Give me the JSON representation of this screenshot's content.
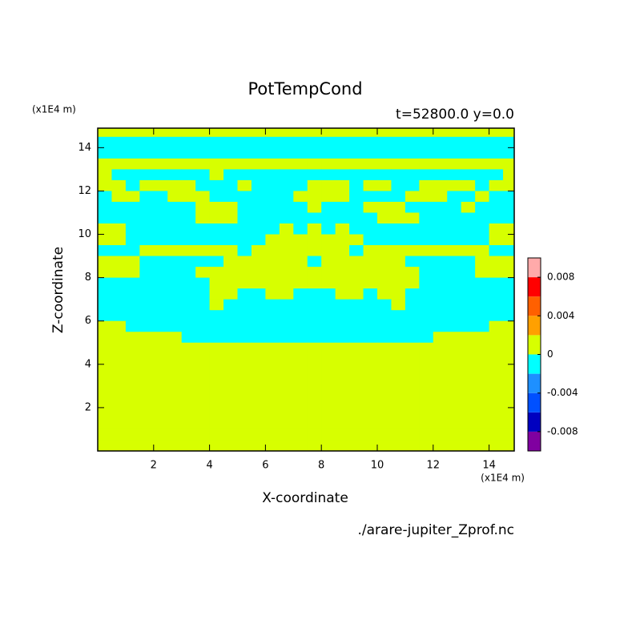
{
  "chart_data": {
    "type": "contour",
    "title": "PotTempCond",
    "subtitle": "t=52800.0 y=0.0",
    "x_label": "X-coordinate",
    "y_label": "Z-coordinate",
    "x_unit": "(x1E4 m)",
    "y_unit": "(x1E4 m)",
    "source": "./arare-jupiter_Zprof.nc",
    "xlim": [
      0,
      14.9
    ],
    "ylim": [
      0,
      14.9
    ],
    "xticks": [
      2,
      4,
      6,
      8,
      10,
      12,
      14
    ],
    "yticks": [
      2,
      4,
      6,
      8,
      10,
      12,
      14
    ],
    "levels": [
      -0.01,
      -0.008,
      -0.006,
      -0.004,
      -0.002,
      0,
      0.002,
      0.004,
      0.006,
      0.008,
      0.01
    ],
    "colors": [
      "#8000a0",
      "#0000c0",
      "#0050ff",
      "#1e90ff",
      "#00ffff",
      "#d7ff00",
      "#ffa000",
      "#ff6000",
      "#ff0000",
      "#ffaaaa"
    ],
    "cbar_ticks": [
      0.008,
      0.004,
      0,
      -0.004,
      -0.008
    ],
    "x": [
      0.25,
      0.75,
      1.25,
      1.75,
      2.25,
      2.75,
      3.25,
      3.75,
      4.25,
      4.75,
      5.25,
      5.75,
      6.25,
      6.75,
      7.25,
      7.75,
      8.25,
      8.75,
      9.25,
      9.75,
      10.25,
      10.75,
      11.25,
      11.75,
      12.25,
      12.75,
      13.25,
      13.75,
      14.25,
      14.75
    ],
    "y": [
      14.75,
      14.25,
      13.75,
      13.25,
      12.75,
      12.25,
      11.75,
      11.25,
      10.75,
      10.25,
      9.75,
      9.25,
      8.75,
      8.25,
      7.75,
      7.25,
      6.75,
      6.25,
      5.75,
      5.25,
      4.75,
      4.25,
      3.75,
      3.25,
      2.75,
      2.25,
      1.75,
      1.25,
      0.75,
      0.25
    ],
    "z": [
      [
        0.001,
        0.001,
        0.001,
        0.001,
        0.001,
        0.001,
        0.001,
        0.001,
        0.001,
        0.001,
        0.001,
        0.001,
        0.001,
        0.001,
        0.001,
        0.001,
        0.001,
        0.001,
        0.001,
        0.001,
        0.001,
        0.001,
        0.001,
        0.001,
        0.001,
        0.001,
        0.001,
        0.001,
        0.001,
        0.001
      ],
      [
        -0.001,
        -0.001,
        -0.001,
        -0.001,
        -0.001,
        -0.001,
        -0.001,
        -0.001,
        -0.001,
        -0.001,
        -0.001,
        -0.001,
        -0.001,
        -0.001,
        -0.001,
        -0.001,
        -0.001,
        -0.001,
        -0.001,
        -0.001,
        -0.001,
        -0.001,
        -0.001,
        -0.001,
        -0.001,
        -0.001,
        -0.001,
        -0.001,
        -0.001,
        -0.001
      ],
      [
        -0.001,
        -0.001,
        -0.001,
        -0.001,
        -0.001,
        -0.001,
        -0.001,
        -0.001,
        -0.001,
        -0.001,
        -0.001,
        -0.001,
        -0.001,
        -0.001,
        -0.001,
        -0.001,
        -0.001,
        -0.001,
        -0.001,
        -0.001,
        -0.001,
        -0.001,
        -0.001,
        -0.001,
        -0.001,
        -0.001,
        -0.001,
        -0.001,
        -0.001,
        -0.001
      ],
      [
        0.001,
        0.001,
        0.001,
        0.001,
        0.001,
        0.001,
        0.001,
        0.001,
        0.001,
        0.001,
        0.001,
        0.001,
        0.001,
        0.001,
        0.001,
        0.001,
        0.001,
        0.001,
        0.001,
        0.001,
        0.001,
        0.001,
        0.001,
        0.001,
        0.001,
        0.001,
        0.001,
        0.001,
        0.001,
        0.001
      ],
      [
        0.001,
        -0.001,
        -0.001,
        -0.001,
        -0.001,
        -0.001,
        -0.001,
        -0.001,
        0.001,
        -0.001,
        -0.001,
        -0.001,
        -0.001,
        -0.001,
        -0.001,
        -0.001,
        -0.001,
        -0.001,
        -0.001,
        -0.001,
        -0.001,
        -0.001,
        -0.001,
        -0.001,
        -0.001,
        -0.001,
        -0.001,
        -0.001,
        -0.001,
        0.001
      ],
      [
        0.001,
        0.001,
        -0.001,
        0.001,
        0.001,
        0.001,
        0.001,
        -0.001,
        -0.001,
        -0.001,
        0.001,
        -0.001,
        -0.001,
        -0.001,
        -0.001,
        0.001,
        0.001,
        0.001,
        -0.001,
        0.001,
        0.001,
        -0.001,
        -0.001,
        0.001,
        0.001,
        0.001,
        0.001,
        -0.001,
        0.001,
        0.001
      ],
      [
        -0.001,
        0.001,
        0.001,
        -0.001,
        -0.001,
        0.001,
        0.001,
        0.001,
        -0.001,
        -0.001,
        -0.001,
        -0.001,
        -0.001,
        -0.001,
        0.001,
        0.001,
        0.001,
        0.001,
        -0.001,
        -0.001,
        -0.001,
        -0.001,
        0.001,
        0.001,
        0.001,
        -0.001,
        -0.001,
        0.001,
        -0.001,
        -0.001
      ],
      [
        -0.001,
        -0.001,
        -0.001,
        -0.001,
        -0.001,
        -0.001,
        -0.001,
        0.001,
        0.001,
        0.001,
        -0.001,
        -0.001,
        -0.001,
        -0.001,
        -0.001,
        0.001,
        -0.001,
        -0.001,
        -0.001,
        0.001,
        0.001,
        0.001,
        -0.001,
        -0.001,
        -0.001,
        -0.001,
        0.001,
        -0.001,
        -0.001,
        -0.001
      ],
      [
        -0.001,
        -0.001,
        -0.001,
        -0.001,
        -0.001,
        -0.001,
        -0.001,
        0.001,
        0.001,
        0.001,
        -0.001,
        -0.001,
        -0.001,
        -0.001,
        -0.001,
        -0.001,
        -0.001,
        -0.001,
        -0.001,
        -0.001,
        0.001,
        0.001,
        0.001,
        -0.001,
        -0.001,
        -0.001,
        -0.001,
        -0.001,
        -0.001,
        -0.001
      ],
      [
        0.001,
        0.001,
        -0.001,
        -0.001,
        -0.001,
        -0.001,
        -0.001,
        -0.001,
        -0.001,
        -0.001,
        -0.001,
        -0.001,
        -0.001,
        0.001,
        -0.001,
        0.001,
        -0.001,
        0.001,
        -0.001,
        -0.001,
        -0.001,
        -0.001,
        -0.001,
        -0.001,
        -0.001,
        -0.001,
        -0.001,
        -0.001,
        0.001,
        0.001
      ],
      [
        0.001,
        0.001,
        -0.001,
        -0.001,
        -0.001,
        -0.001,
        -0.001,
        -0.001,
        -0.001,
        -0.001,
        -0.001,
        -0.001,
        0.001,
        0.001,
        0.001,
        0.001,
        0.001,
        0.001,
        0.001,
        -0.001,
        -0.001,
        -0.001,
        -0.001,
        -0.001,
        -0.001,
        -0.001,
        -0.001,
        -0.001,
        0.001,
        0.001
      ],
      [
        -0.001,
        -0.001,
        -0.001,
        0.001,
        0.001,
        0.001,
        0.001,
        0.001,
        0.001,
        0.001,
        -0.001,
        0.001,
        0.001,
        0.001,
        0.001,
        0.001,
        0.001,
        0.001,
        -0.001,
        0.001,
        0.001,
        0.001,
        0.001,
        0.001,
        0.001,
        0.001,
        0.001,
        0.001,
        -0.001,
        -0.001
      ],
      [
        0.001,
        0.001,
        0.001,
        -0.001,
        -0.001,
        -0.001,
        -0.001,
        -0.001,
        -0.001,
        0.001,
        0.001,
        0.001,
        0.001,
        0.001,
        0.001,
        -0.001,
        0.001,
        0.001,
        0.001,
        0.001,
        0.001,
        0.001,
        -0.001,
        -0.001,
        -0.001,
        -0.001,
        -0.001,
        0.001,
        0.001,
        0.001
      ],
      [
        0.001,
        0.001,
        0.001,
        -0.001,
        -0.001,
        -0.001,
        -0.001,
        0.001,
        0.001,
        0.001,
        0.001,
        0.001,
        0.001,
        0.001,
        0.001,
        0.001,
        0.001,
        0.001,
        0.001,
        0.001,
        0.001,
        0.001,
        0.001,
        -0.001,
        -0.001,
        -0.001,
        -0.001,
        0.001,
        0.001,
        0.001
      ],
      [
        -0.001,
        -0.001,
        -0.001,
        -0.001,
        -0.001,
        -0.001,
        -0.001,
        -0.001,
        0.001,
        0.001,
        0.001,
        0.001,
        0.001,
        0.001,
        0.001,
        0.001,
        0.001,
        0.001,
        0.001,
        0.001,
        0.001,
        0.001,
        0.001,
        -0.001,
        -0.001,
        -0.001,
        -0.001,
        -0.001,
        -0.001,
        -0.001
      ],
      [
        -0.001,
        -0.001,
        -0.001,
        -0.001,
        -0.001,
        -0.001,
        -0.001,
        -0.001,
        0.001,
        0.001,
        -0.001,
        -0.001,
        0.001,
        0.001,
        -0.001,
        -0.001,
        -0.001,
        0.001,
        0.001,
        -0.001,
        0.001,
        0.001,
        -0.001,
        -0.001,
        -0.001,
        -0.001,
        -0.001,
        -0.001,
        -0.001,
        -0.001
      ],
      [
        -0.001,
        -0.001,
        -0.001,
        -0.001,
        -0.001,
        -0.001,
        -0.001,
        -0.001,
        0.001,
        -0.001,
        -0.001,
        -0.001,
        -0.001,
        -0.001,
        -0.001,
        -0.001,
        -0.001,
        -0.001,
        -0.001,
        -0.001,
        -0.001,
        0.001,
        -0.001,
        -0.001,
        -0.001,
        -0.001,
        -0.001,
        -0.001,
        -0.001,
        -0.001
      ],
      [
        -0.001,
        -0.001,
        -0.001,
        -0.001,
        -0.001,
        -0.001,
        -0.001,
        -0.001,
        -0.001,
        -0.001,
        -0.001,
        -0.001,
        -0.001,
        -0.001,
        -0.001,
        -0.001,
        -0.001,
        -0.001,
        -0.001,
        -0.001,
        -0.001,
        -0.001,
        -0.001,
        -0.001,
        -0.001,
        -0.001,
        -0.001,
        -0.001,
        -0.001,
        -0.001
      ],
      [
        0.001,
        0.001,
        -0.001,
        -0.001,
        -0.001,
        -0.001,
        -0.001,
        -0.001,
        -0.001,
        -0.001,
        -0.001,
        -0.001,
        -0.001,
        -0.001,
        -0.001,
        -0.001,
        -0.001,
        -0.001,
        -0.001,
        -0.001,
        -0.001,
        -0.001,
        -0.001,
        -0.001,
        -0.001,
        -0.001,
        -0.001,
        -0.001,
        0.001,
        0.001
      ],
      [
        0.001,
        0.001,
        0.001,
        0.001,
        0.001,
        0.001,
        -0.001,
        -0.001,
        -0.001,
        -0.001,
        -0.001,
        -0.001,
        -0.001,
        -0.001,
        -0.001,
        -0.001,
        -0.001,
        -0.001,
        -0.001,
        -0.001,
        -0.001,
        -0.001,
        -0.001,
        -0.001,
        0.001,
        0.001,
        0.001,
        0.001,
        0.001,
        0.001
      ],
      [
        0.001,
        0.001,
        0.001,
        0.001,
        0.001,
        0.001,
        0.001,
        0.001,
        0.001,
        0.001,
        0.001,
        0.001,
        0.001,
        0.001,
        0.001,
        0.001,
        0.001,
        0.001,
        0.001,
        0.001,
        0.001,
        0.001,
        0.001,
        0.001,
        0.001,
        0.001,
        0.001,
        0.001,
        0.001,
        0.001
      ],
      [
        0.001,
        0.001,
        0.001,
        0.001,
        0.001,
        0.001,
        0.001,
        0.001,
        0.001,
        0.001,
        0.001,
        0.001,
        0.001,
        0.001,
        0.001,
        0.001,
        0.001,
        0.001,
        0.001,
        0.001,
        0.001,
        0.001,
        0.001,
        0.001,
        0.001,
        0.001,
        0.001,
        0.001,
        0.001,
        0.001
      ],
      [
        0.001,
        0.001,
        0.001,
        0.001,
        0.001,
        0.001,
        0.001,
        0.001,
        0.001,
        0.001,
        0.001,
        0.001,
        0.001,
        0.001,
        0.001,
        0.001,
        0.001,
        0.001,
        0.001,
        0.001,
        0.001,
        0.001,
        0.001,
        0.001,
        0.001,
        0.001,
        0.001,
        0.001,
        0.001,
        0.001
      ],
      [
        0.001,
        0.001,
        0.001,
        0.001,
        0.001,
        0.001,
        0.001,
        0.001,
        0.001,
        0.001,
        0.001,
        0.001,
        0.001,
        0.001,
        0.001,
        0.001,
        0.001,
        0.001,
        0.001,
        0.001,
        0.001,
        0.001,
        0.001,
        0.001,
        0.001,
        0.001,
        0.001,
        0.001,
        0.001,
        0.001
      ],
      [
        0.001,
        0.001,
        0.001,
        0.001,
        0.001,
        0.001,
        0.001,
        0.001,
        0.001,
        0.001,
        0.001,
        0.001,
        0.001,
        0.001,
        0.001,
        0.001,
        0.001,
        0.001,
        0.001,
        0.001,
        0.001,
        0.001,
        0.001,
        0.001,
        0.001,
        0.001,
        0.001,
        0.001,
        0.001,
        0.001
      ],
      [
        0.001,
        0.001,
        0.001,
        0.001,
        0.001,
        0.001,
        0.001,
        0.001,
        0.001,
        0.001,
        0.001,
        0.001,
        0.001,
        0.001,
        0.001,
        0.001,
        0.001,
        0.001,
        0.001,
        0.001,
        0.001,
        0.001,
        0.001,
        0.001,
        0.001,
        0.001,
        0.001,
        0.001,
        0.001,
        0.001
      ],
      [
        0.001,
        0.001,
        0.001,
        0.001,
        0.001,
        0.001,
        0.001,
        0.001,
        0.001,
        0.001,
        0.001,
        0.001,
        0.001,
        0.001,
        0.001,
        0.001,
        0.001,
        0.001,
        0.001,
        0.001,
        0.001,
        0.001,
        0.001,
        0.001,
        0.001,
        0.001,
        0.001,
        0.001,
        0.001,
        0.001
      ],
      [
        0.001,
        0.001,
        0.001,
        0.001,
        0.001,
        0.001,
        0.001,
        0.001,
        0.001,
        0.001,
        0.001,
        0.001,
        0.001,
        0.001,
        0.001,
        0.001,
        0.001,
        0.001,
        0.001,
        0.001,
        0.001,
        0.001,
        0.001,
        0.001,
        0.001,
        0.001,
        0.001,
        0.001,
        0.001,
        0.001
      ],
      [
        0.001,
        0.001,
        0.001,
        0.001,
        0.001,
        0.001,
        0.001,
        0.001,
        0.001,
        0.001,
        0.001,
        0.001,
        0.001,
        0.001,
        0.001,
        0.001,
        0.001,
        0.001,
        0.001,
        0.001,
        0.001,
        0.001,
        0.001,
        0.001,
        0.001,
        0.001,
        0.001,
        0.001,
        0.001,
        0.001
      ],
      [
        0.001,
        0.001,
        0.001,
        0.001,
        0.001,
        0.001,
        0.001,
        0.001,
        0.001,
        0.001,
        0.001,
        0.001,
        0.001,
        0.001,
        0.001,
        0.001,
        0.001,
        0.001,
        0.001,
        0.001,
        0.001,
        0.001,
        0.001,
        0.001,
        0.001,
        0.001,
        0.001,
        0.001,
        0.001,
        0.001
      ]
    ]
  }
}
